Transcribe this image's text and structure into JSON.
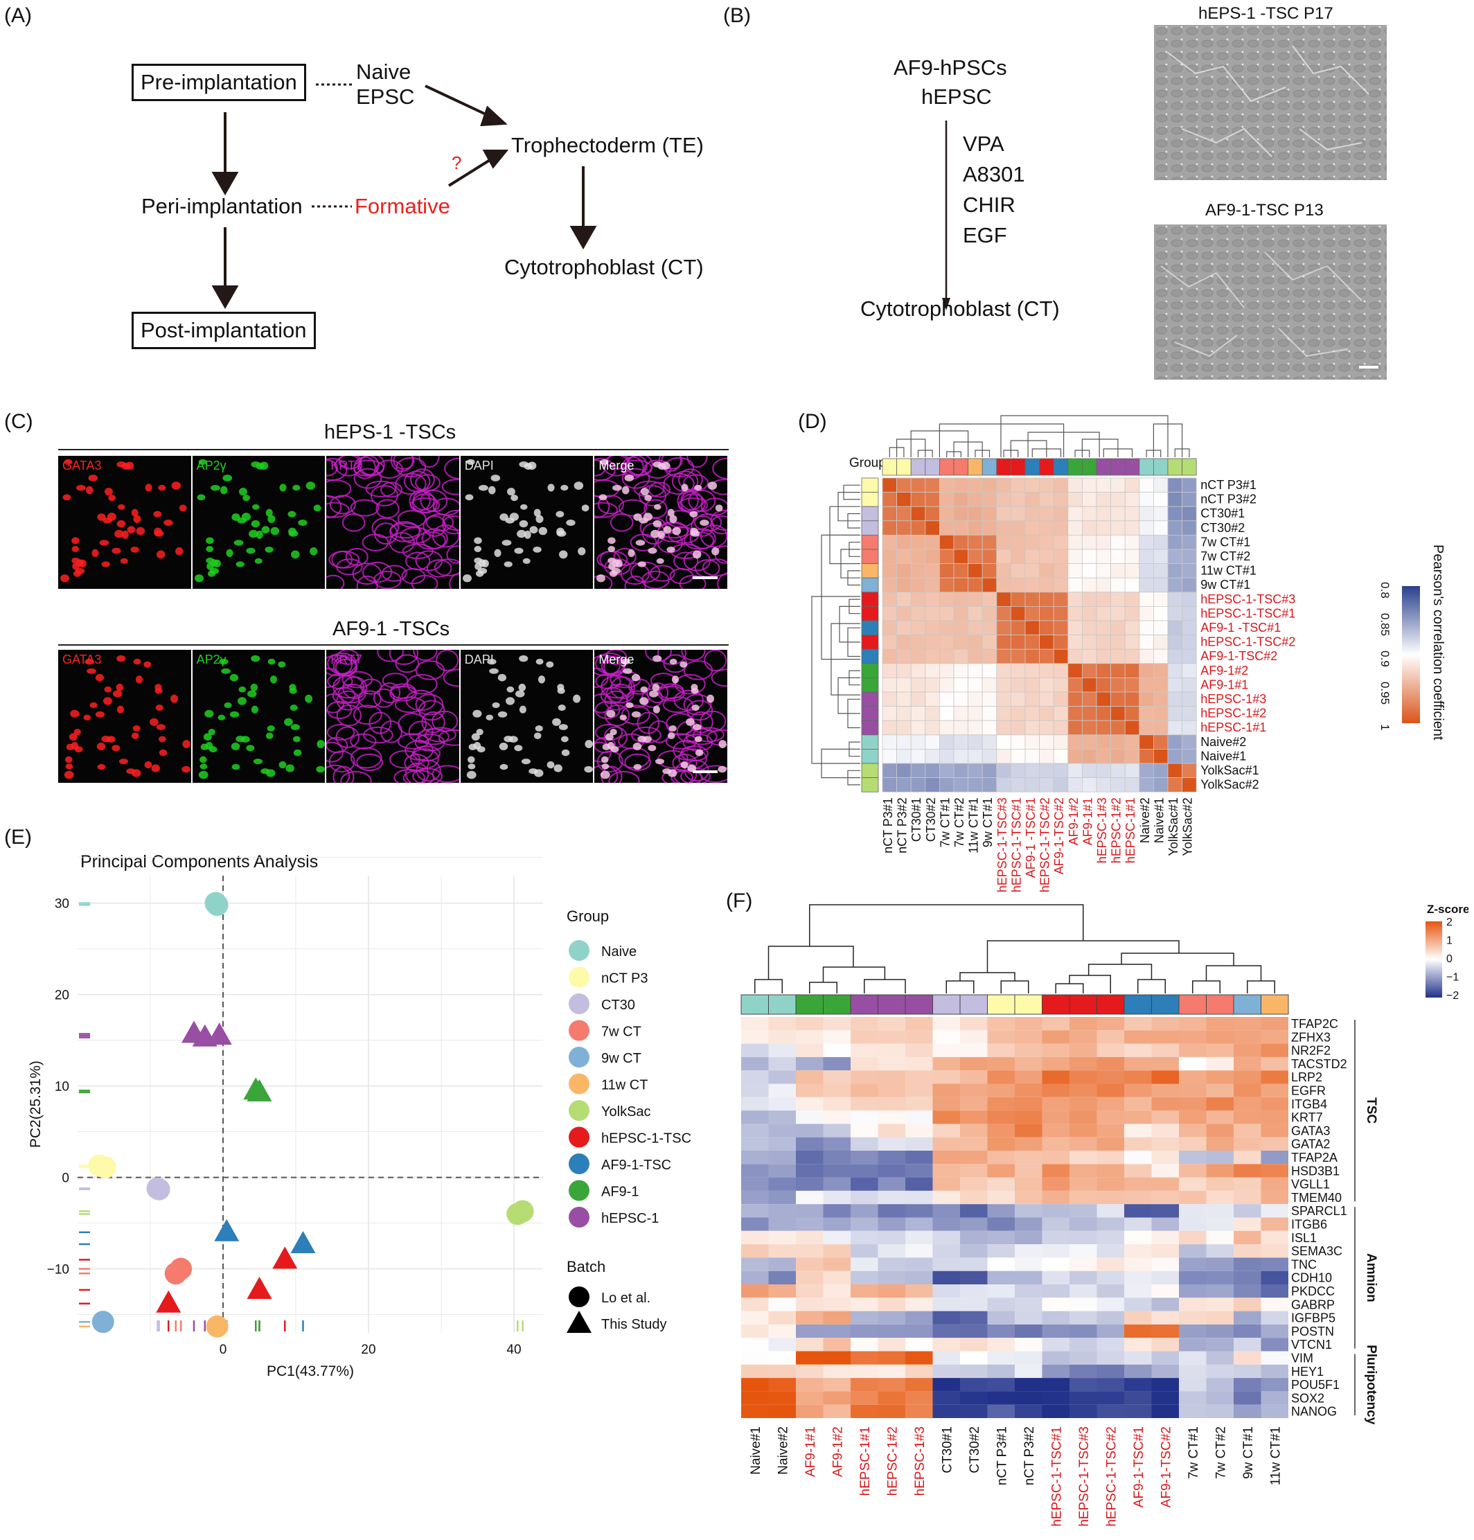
{
  "panels": {
    "A": "(A)",
    "B": "(B)",
    "C": "(C)",
    "D": "(D)",
    "E": "(E)",
    "F": "(F)"
  },
  "panelA": {
    "pre": "Pre-implantation",
    "peri": "Peri-implantation",
    "post": "Post-implantation",
    "naive": "Naive",
    "epsc": "EPSC",
    "formative": "Formative",
    "te": "Trophectoderm (TE)",
    "ct": "Cytotrophoblast (CT)",
    "question": "?"
  },
  "panelB": {
    "line1": "AF9-hPSCs",
    "line2": "hEPSC",
    "factors": [
      "VPA",
      "A8301",
      "CHIR",
      "EGF"
    ],
    "result": "Cytotrophoblast (CT)",
    "img1_title": "hEPS-1 -TSC P17",
    "img2_title": "AF9-1-TSC P13"
  },
  "panelC": {
    "row1_title": "hEPS-1 -TSCs",
    "row2_title": "AF9-1 -TSCs",
    "channels": [
      {
        "label": "GATA3",
        "color": "#ff2020"
      },
      {
        "label": "AP2γ",
        "color": "#20d020"
      },
      {
        "label": "KRT7",
        "color": "#d020d0"
      },
      {
        "label": "DAPI",
        "color": "#e0e0e0"
      },
      {
        "label": "Merge",
        "color": "#ffffff"
      }
    ]
  },
  "panelD": {
    "groups_label": "Groups",
    "legend_title": "Pearson's correlation coefficient",
    "legend_ticks": [
      "0.8",
      "0.85",
      "0.9",
      "0.95",
      "1"
    ],
    "samples": [
      {
        "name": "nCT P3#1",
        "group": "nCT P3",
        "red": false
      },
      {
        "name": "nCT P3#2",
        "group": "nCT P3",
        "red": false
      },
      {
        "name": "CT30#1",
        "group": "CT30",
        "red": false
      },
      {
        "name": "CT30#2",
        "group": "CT30",
        "red": false
      },
      {
        "name": "7w CT#1",
        "group": "7w CT",
        "red": false
      },
      {
        "name": "7w CT#2",
        "group": "7w CT",
        "red": false
      },
      {
        "name": "11w CT#1",
        "group": "11w CT",
        "red": false
      },
      {
        "name": "9w CT#1",
        "group": "9w CT",
        "red": false
      },
      {
        "name": "hEPSC-1-TSC#3",
        "group": "hEPSC-1-TSC",
        "red": true
      },
      {
        "name": "hEPSC-1-TSC#1",
        "group": "hEPSC-1-TSC",
        "red": true
      },
      {
        "name": "AF9-1 -TSC#1",
        "group": "AF9-1-TSC",
        "red": true
      },
      {
        "name": "hEPSC-1-TSC#2",
        "group": "hEPSC-1-TSC",
        "red": true
      },
      {
        "name": "AF9-1-TSC#2",
        "group": "AF9-1-TSC",
        "red": true
      },
      {
        "name": "AF9-1#2",
        "group": "AF9-1",
        "red": true
      },
      {
        "name": "AF9-1#1",
        "group": "AF9-1",
        "red": true
      },
      {
        "name": "hEPSC-1#3",
        "group": "hEPSC-1",
        "red": true
      },
      {
        "name": "hEPSC-1#2",
        "group": "hEPSC-1",
        "red": true
      },
      {
        "name": "hEPSC-1#1",
        "group": "hEPSC-1",
        "red": true
      },
      {
        "name": "Naive#2",
        "group": "Naive",
        "red": false
      },
      {
        "name": "Naive#1",
        "group": "Naive",
        "red": false
      },
      {
        "name": "YolkSac#1",
        "group": "YolkSac",
        "red": false
      },
      {
        "name": "YolkSac#2",
        "group": "YolkSac",
        "red": false
      }
    ]
  },
  "groupColors": {
    "Naive": "#8fd3c8",
    "nCT P3": "#fdfaa9",
    "CT30": "#c3bde0",
    "7w CT": "#f47b6e",
    "9w CT": "#7fb1d6",
    "11w CT": "#fab667",
    "YolkSac": "#b6dc74",
    "hEPSC-1-TSC": "#e41a1c",
    "AF9-1-TSC": "#2c7fb8",
    "AF9-1": "#3aa639",
    "hEPSC-1": "#984ea3"
  },
  "chart_data": {
    "type": "scatter",
    "title": "Principal Components Analysis",
    "xlabel": "PC1(43.77%)",
    "ylabel": "PC2(25.31%)",
    "xlim": [
      -20,
      44
    ],
    "ylim": [
      -17,
      33
    ],
    "xticks": [
      0,
      20,
      40
    ],
    "yticks": [
      -10,
      0,
      10,
      20,
      30
    ],
    "legend_group_title": "Group",
    "legend_batch_title": "Batch",
    "batches": [
      {
        "name": "Lo et al.",
        "shape": "circle"
      },
      {
        "name": "This Study",
        "shape": "triangle"
      }
    ],
    "groups": [
      "Naive",
      "nCT P3",
      "CT30",
      "7w CT",
      "9w CT",
      "11w CT",
      "YolkSac",
      "hEPSC-1-TSC",
      "AF9-1-TSC",
      "AF9-1",
      "hEPSC-1"
    ],
    "points": [
      {
        "group": "Naive",
        "batch": "Lo et al.",
        "x": -1,
        "y": 30
      },
      {
        "group": "Naive",
        "batch": "Lo et al.",
        "x": -0.8,
        "y": 29.8
      },
      {
        "group": "nCT P3",
        "batch": "Lo et al.",
        "x": -17,
        "y": 1.3
      },
      {
        "group": "nCT P3",
        "batch": "Lo et al.",
        "x": -16.2,
        "y": 1.1
      },
      {
        "group": "CT30",
        "batch": "Lo et al.",
        "x": -9,
        "y": -1.2
      },
      {
        "group": "CT30",
        "batch": "Lo et al.",
        "x": -8.8,
        "y": -1.3
      },
      {
        "group": "7w CT",
        "batch": "Lo et al.",
        "x": -6.5,
        "y": -10.5
      },
      {
        "group": "7w CT",
        "batch": "Lo et al.",
        "x": -5.8,
        "y": -10
      },
      {
        "group": "9w CT",
        "batch": "Lo et al.",
        "x": -16.5,
        "y": -15.8
      },
      {
        "group": "11w CT",
        "batch": "Lo et al.",
        "x": -0.8,
        "y": -16.3
      },
      {
        "group": "YolkSac",
        "batch": "Lo et al.",
        "x": 40.5,
        "y": -4
      },
      {
        "group": "YolkSac",
        "batch": "Lo et al.",
        "x": 41.2,
        "y": -3.7
      },
      {
        "group": "hEPSC-1-TSC",
        "batch": "This Study",
        "x": -7.5,
        "y": -13.8
      },
      {
        "group": "hEPSC-1-TSC",
        "batch": "This Study",
        "x": 5,
        "y": -12.3
      },
      {
        "group": "hEPSC-1-TSC",
        "batch": "This Study",
        "x": 8.5,
        "y": -9
      },
      {
        "group": "AF9-1-TSC",
        "batch": "This Study",
        "x": 0.5,
        "y": -6
      },
      {
        "group": "AF9-1-TSC",
        "batch": "This Study",
        "x": 11,
        "y": -7.3
      },
      {
        "group": "AF9-1",
        "batch": "This Study",
        "x": 4.5,
        "y": 9.5
      },
      {
        "group": "AF9-1",
        "batch": "This Study",
        "x": 5,
        "y": 9.3
      },
      {
        "group": "hEPSC-1",
        "batch": "This Study",
        "x": -4,
        "y": 15.7
      },
      {
        "group": "hEPSC-1",
        "batch": "This Study",
        "x": -2.5,
        "y": 15.3
      },
      {
        "group": "hEPSC-1",
        "batch": "This Study",
        "x": -0.5,
        "y": 15.5
      }
    ]
  },
  "panelF": {
    "legend_title": "Z-score",
    "legend_ticks": [
      "2",
      "1",
      "0",
      "−1",
      "−2"
    ],
    "columns": [
      {
        "name": "Naive#1",
        "group": "Naive",
        "red": false
      },
      {
        "name": "Naive#2",
        "group": "Naive",
        "red": false
      },
      {
        "name": "AF9-1#1",
        "group": "AF9-1",
        "red": true
      },
      {
        "name": "AF9-1#2",
        "group": "AF9-1",
        "red": true
      },
      {
        "name": "hEPSC-1#1",
        "group": "hEPSC-1",
        "red": true
      },
      {
        "name": "hEPSC-1#2",
        "group": "hEPSC-1",
        "red": true
      },
      {
        "name": "hEPSC-1#3",
        "group": "hEPSC-1",
        "red": true
      },
      {
        "name": "CT30#1",
        "group": "CT30",
        "red": false
      },
      {
        "name": "CT30#2",
        "group": "CT30",
        "red": false
      },
      {
        "name": "nCT P3#1",
        "group": "nCT P3",
        "red": false
      },
      {
        "name": "nCT P3#2",
        "group": "nCT P3",
        "red": false
      },
      {
        "name": "hEPSC-1-TSC#1",
        "group": "hEPSC-1-TSC",
        "red": true
      },
      {
        "name": "hEPSC-1-TSC#3",
        "group": "hEPSC-1-TSC",
        "red": true
      },
      {
        "name": "hEPSC-1-TSC#2",
        "group": "hEPSC-1-TSC",
        "red": true
      },
      {
        "name": "AF9-1-TSC#1",
        "group": "AF9-1-TSC",
        "red": true
      },
      {
        "name": "AF9-1-TSC#2",
        "group": "AF9-1-TSC",
        "red": true
      },
      {
        "name": "7w CT#1",
        "group": "7w CT",
        "red": false
      },
      {
        "name": "7w CT#2",
        "group": "7w CT",
        "red": false
      },
      {
        "name": "9w CT#1",
        "group": "9w CT",
        "red": false
      },
      {
        "name": "11w CT#1",
        "group": "11w CT",
        "red": false
      }
    ],
    "genes": [
      "TFAP2C",
      "ZFHX3",
      "NR2F2",
      "TACSTD2",
      "LRP2",
      "EGFR",
      "ITGB4",
      "KRT7",
      "GATA3",
      "GATA2",
      "TFAP2A",
      "HSD3B1",
      "VGLL1",
      "TMEM40",
      "SPARCL1",
      "ITGB6",
      "ISL1",
      "SEMA3C",
      "TNC",
      "CDH10",
      "PKDCC",
      "GABRP",
      "IGFBP5",
      "POSTN",
      "VTCN1",
      "VIM",
      "HEY1",
      "POU5F1",
      "SOX2",
      "NANOG"
    ],
    "gene_groups": [
      {
        "label": "TSC",
        "from": 0,
        "to": 13
      },
      {
        "label": "Amnion",
        "from": 14,
        "to": 24
      },
      {
        "label": "Pluripotency",
        "from": 25,
        "to": 29
      }
    ]
  }
}
